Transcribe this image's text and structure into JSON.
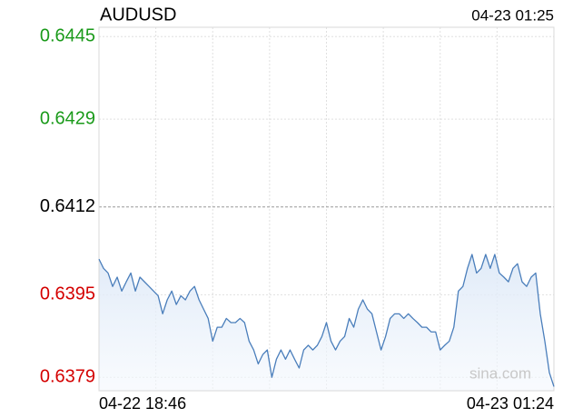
{
  "chart_data": {
    "type": "line",
    "title": "AUDUSD",
    "timestamp": "04-23 01:25",
    "watermark": "sina.com",
    "categories": [
      "04-22 18:46",
      null,
      null,
      null,
      null,
      null,
      null,
      null,
      null,
      null,
      null,
      null,
      null,
      null,
      null,
      null,
      null,
      null,
      null,
      null,
      null,
      null,
      null,
      null,
      null,
      null,
      null,
      null,
      null,
      null,
      null,
      null,
      null,
      null,
      null,
      null,
      null,
      null,
      null,
      null,
      null,
      null,
      null,
      null,
      null,
      null,
      null,
      null,
      null,
      null,
      null,
      null,
      null,
      null,
      null,
      null,
      null,
      null,
      null,
      null,
      null,
      null,
      null,
      null,
      null,
      null,
      null,
      null,
      null,
      null,
      null,
      null,
      null,
      null,
      null,
      null,
      null,
      null,
      null,
      null,
      null,
      null,
      null,
      null,
      null,
      null,
      null,
      null,
      null,
      null,
      null,
      null,
      null,
      null,
      null,
      null,
      null,
      null,
      null,
      null,
      "04-23 01:24"
    ],
    "series": [
      {
        "color": "#4a7ebb",
        "values": [
          0.64019,
          0.64001,
          0.63992,
          0.63966,
          0.63984,
          0.63957,
          0.63975,
          0.63992,
          0.63957,
          0.63984,
          0.63975,
          0.63966,
          0.63957,
          0.63948,
          0.63913,
          0.6394,
          0.63957,
          0.63931,
          0.63948,
          0.6394,
          0.63957,
          0.63966,
          0.6394,
          0.63922,
          0.63904,
          0.6386,
          0.63887,
          0.63887,
          0.63904,
          0.63896,
          0.63896,
          0.63904,
          0.63896,
          0.6386,
          0.63843,
          0.63816,
          0.63834,
          0.63843,
          0.6379,
          0.63825,
          0.63843,
          0.63825,
          0.63843,
          0.63825,
          0.63808,
          0.63843,
          0.63852,
          0.63843,
          0.63852,
          0.63869,
          0.63896,
          0.6386,
          0.63843,
          0.6386,
          0.63869,
          0.63904,
          0.63887,
          0.63922,
          0.6394,
          0.63922,
          0.63913,
          0.63878,
          0.63843,
          0.63869,
          0.63904,
          0.63913,
          0.63913,
          0.63904,
          0.63913,
          0.63904,
          0.63896,
          0.63887,
          0.63887,
          0.63878,
          0.63878,
          0.63843,
          0.63852,
          0.6386,
          0.63887,
          0.63957,
          0.63966,
          0.64001,
          0.64028,
          0.63992,
          0.64001,
          0.64028,
          0.64001,
          0.64028,
          0.63992,
          0.63984,
          0.63975,
          0.64001,
          0.6401,
          0.63975,
          0.63966,
          0.63984,
          0.63992,
          0.63913,
          0.6386,
          0.63799,
          0.63772
        ]
      }
    ],
    "ylim": [
      0.63764,
      0.64468
    ],
    "yticks": [
      0.6445,
      0.6429,
      0.6412,
      0.6395,
      0.6379
    ],
    "ytick_colors": [
      "#1a9a1a",
      "#1a9a1a",
      "#000000",
      "#d40000",
      "#d40000"
    ],
    "grid": true
  }
}
